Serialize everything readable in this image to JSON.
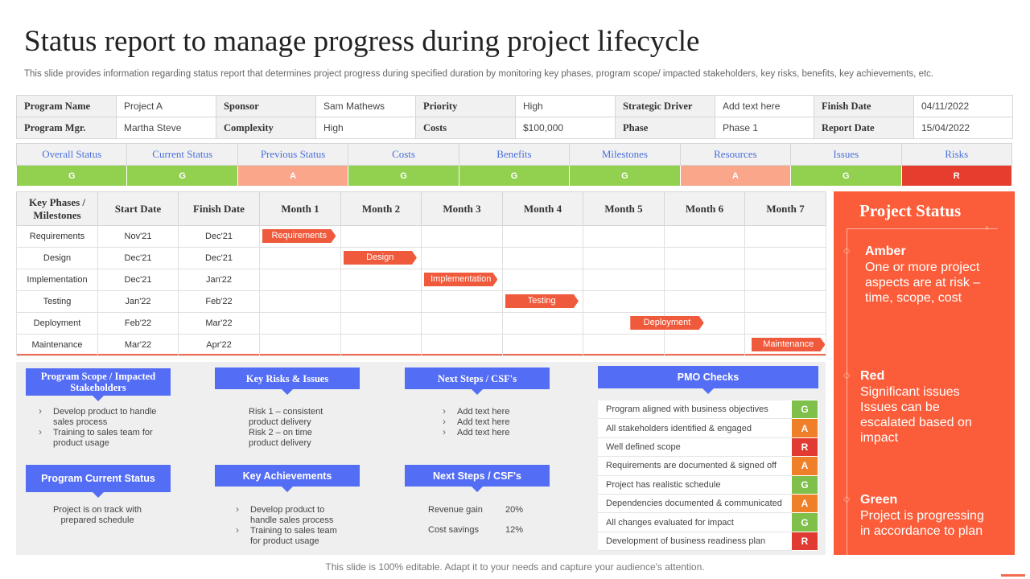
{
  "title": "Status report to manage progress during project lifecycle",
  "subtitle": "This slide provides information regarding status report that determines project progress during specified duration by monitoring key phases, program scope/ impacted stakeholders, key risks, benefits, key achievements, etc.",
  "info": {
    "row1": [
      {
        "label": "Program Name",
        "value": "Project A"
      },
      {
        "label": "Sponsor",
        "value": "Sam Mathews"
      },
      {
        "label": "Priority",
        "value": "High"
      },
      {
        "label": "Strategic Driver",
        "value": "Add text here"
      },
      {
        "label": "Finish  Date",
        "value": "04/11/2022"
      }
    ],
    "row2": [
      {
        "label": "Program Mgr.",
        "value": "Martha Steve"
      },
      {
        "label": "Complexity",
        "value": "High"
      },
      {
        "label": "Costs",
        "value": "$100,000"
      },
      {
        "label": "Phase",
        "value": "Phase 1"
      },
      {
        "label": "Report Date",
        "value": "15/04/2022"
      }
    ]
  },
  "status": {
    "headers": [
      "Overall Status",
      "Current Status",
      "Previous Status",
      "Costs",
      "Benefits",
      "Milestones",
      "Resources",
      "Issues",
      "Risks"
    ],
    "values": [
      "G",
      "G",
      "A",
      "G",
      "G",
      "G",
      "A",
      "G",
      "R"
    ],
    "colors": {
      "G": "#92d050",
      "A": "#f9a68b",
      "R": "#e53e2e"
    }
  },
  "gantt": {
    "headers": [
      "Key Phases / Milestones",
      "Start Date",
      "Finish Date",
      "Month 1",
      "Month 2",
      "Month 3",
      "Month 4",
      "Month 5",
      "Month 6",
      "Month 7"
    ],
    "rows": [
      {
        "phase": "Requirements",
        "start": "Nov'21",
        "finish": "Dec'21",
        "bar": "Requirements",
        "bar_start_month": 1.0,
        "bar_span_months": 0.95
      },
      {
        "phase": "Design",
        "start": "Dec'21",
        "finish": "Dec'21",
        "bar": "Design",
        "bar_start_month": 2.0,
        "bar_span_months": 0.95
      },
      {
        "phase": "Implementation",
        "start": "Dec'21",
        "finish": "Jan'22",
        "bar": "Implementation",
        "bar_start_month": 3.0,
        "bar_span_months": 0.95
      },
      {
        "phase": "Testing",
        "start": "Jan'22",
        "finish": "Feb'22",
        "bar": "Testing",
        "bar_start_month": 4.0,
        "bar_span_months": 0.95
      },
      {
        "phase": "Deployment",
        "start": "Feb'22",
        "finish": "Mar'22",
        "bar": "Deployment",
        "bar_start_month": 5.55,
        "bar_span_months": 0.95
      },
      {
        "phase": "Maintenance",
        "start": "Mar'22",
        "finish": "Apr'22",
        "bar": "Maintenance",
        "bar_start_month": 7.05,
        "bar_span_months": 0.95
      }
    ]
  },
  "lower": {
    "scope": {
      "title": "Program Scope / Impacted Stakeholders",
      "items": [
        "Develop product to handle sales process",
        "Training to sales team for product usage"
      ]
    },
    "risks": {
      "title": "Key Risks & Issues",
      "items": [
        "Risk 1 – consistent product delivery",
        "Risk 2 – on time product delivery"
      ]
    },
    "next1": {
      "title": "Next Steps / CSF's",
      "items": [
        "Add text here",
        "Add text here",
        "Add text here"
      ]
    },
    "current": {
      "title": "Program Current Status",
      "text": "Project is on track with prepared schedule"
    },
    "achievements": {
      "title": "Key Achievements",
      "items": [
        "Develop product to handle sales process",
        "Training to sales team for product usage"
      ]
    },
    "next2": {
      "title": "Next Steps / CSF's",
      "metrics": [
        {
          "label": "Revenue gain",
          "value": "20%"
        },
        {
          "label": "Cost savings",
          "value": "12%"
        }
      ]
    },
    "pmo": {
      "title": "PMO Checks",
      "items": [
        {
          "text": "Program aligned  with business objectives",
          "status": "G"
        },
        {
          "text": "All stakeholders identified & engaged",
          "status": "A"
        },
        {
          "text": "Well defined scope",
          "status": "R"
        },
        {
          "text": "Requirements  are documented & signed off",
          "status": "A"
        },
        {
          "text": "Project has realistic schedule",
          "status": "G"
        },
        {
          "text": "Dependencies documented & communicated",
          "status": "A"
        },
        {
          "text": "All changes evaluated for impact",
          "status": "G"
        },
        {
          "text": "Development  of business readiness plan",
          "status": "R"
        }
      ]
    }
  },
  "project_status": {
    "title": "Project Status",
    "items": [
      {
        "name": "Amber",
        "desc": "One  or more project aspects are at risk – time, scope, cost"
      },
      {
        "name": "Red",
        "desc": "Significant issues Issues  can be escalated based on impact"
      },
      {
        "name": "Green",
        "desc": "Project is progressing in accordance to plan"
      }
    ]
  },
  "footer": "This slide is 100% editable. Adapt it to your needs and capture your audience's attention."
}
